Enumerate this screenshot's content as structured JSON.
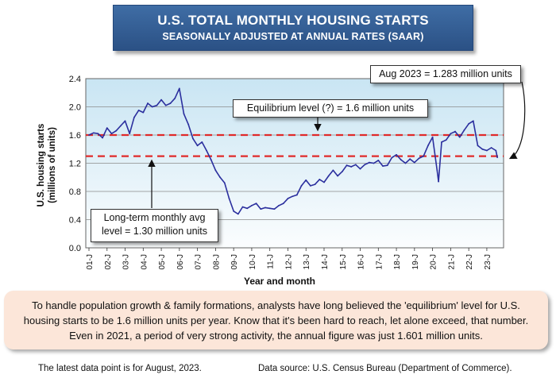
{
  "header": {
    "title": "U.S. TOTAL MONTHLY HOUSING STARTS",
    "subtitle": "SEASONALLY ADJUSTED AT ANNUAL RATES (SAAR)"
  },
  "chart_data": {
    "type": "line",
    "ylabel_line1": "U.S. housing starts",
    "ylabel_line2": "(millions of units)",
    "xlabel": "Year and month",
    "ylim": [
      0.0,
      2.4
    ],
    "y_ticks": [
      "0.0",
      "0.4",
      "0.8",
      "1.2",
      "1.6",
      "2.0",
      "2.4"
    ],
    "x_tick_labels": [
      "01-J",
      "02-J",
      "03-J",
      "04-J",
      "05-J",
      "06-J",
      "07-J",
      "08-J",
      "09-J",
      "10-J",
      "11-J",
      "12-J",
      "13-J",
      "14-J",
      "15-J",
      "16-J",
      "17-J",
      "18-J",
      "19-J",
      "20-J",
      "21-J",
      "22-J",
      "23-J"
    ],
    "x_range": [
      2001.0,
      2023.75
    ],
    "series": [
      {
        "name": "Housing starts (SAAR, millions)",
        "color": "#2b2f9e",
        "x": [
          2001.0,
          2001.25,
          2001.5,
          2001.75,
          2002.0,
          2002.25,
          2002.5,
          2002.75,
          2003.0,
          2003.25,
          2003.5,
          2003.75,
          2004.0,
          2004.25,
          2004.5,
          2004.75,
          2005.0,
          2005.25,
          2005.5,
          2005.75,
          2006.0,
          2006.25,
          2006.5,
          2006.75,
          2007.0,
          2007.25,
          2007.5,
          2007.75,
          2008.0,
          2008.25,
          2008.5,
          2008.75,
          2009.0,
          2009.25,
          2009.5,
          2009.75,
          2010.0,
          2010.25,
          2010.5,
          2010.75,
          2011.0,
          2011.25,
          2011.5,
          2011.75,
          2012.0,
          2012.25,
          2012.5,
          2012.75,
          2013.0,
          2013.25,
          2013.5,
          2013.75,
          2014.0,
          2014.25,
          2014.5,
          2014.75,
          2015.0,
          2015.25,
          2015.5,
          2015.75,
          2016.0,
          2016.25,
          2016.5,
          2016.75,
          2017.0,
          2017.25,
          2017.5,
          2017.75,
          2018.0,
          2018.25,
          2018.5,
          2018.75,
          2019.0,
          2019.25,
          2019.5,
          2019.75,
          2020.0,
          2020.25,
          2020.33,
          2020.5,
          2020.75,
          2021.0,
          2021.25,
          2021.5,
          2021.75,
          2022.0,
          2022.25,
          2022.5,
          2022.75,
          2023.0,
          2023.25,
          2023.5,
          2023.58
        ],
        "values": [
          1.6,
          1.63,
          1.62,
          1.56,
          1.7,
          1.62,
          1.66,
          1.73,
          1.8,
          1.62,
          1.85,
          1.95,
          1.92,
          2.05,
          2.0,
          2.02,
          2.1,
          2.02,
          2.05,
          2.12,
          2.26,
          1.9,
          1.75,
          1.55,
          1.45,
          1.5,
          1.38,
          1.25,
          1.1,
          1.0,
          0.92,
          0.7,
          0.52,
          0.48,
          0.58,
          0.56,
          0.6,
          0.63,
          0.55,
          0.57,
          0.56,
          0.55,
          0.6,
          0.63,
          0.7,
          0.73,
          0.75,
          0.88,
          0.96,
          0.88,
          0.9,
          0.97,
          0.93,
          1.02,
          1.1,
          1.02,
          1.08,
          1.17,
          1.15,
          1.18,
          1.12,
          1.18,
          1.21,
          1.2,
          1.24,
          1.16,
          1.17,
          1.28,
          1.32,
          1.25,
          1.2,
          1.26,
          1.21,
          1.27,
          1.3,
          1.45,
          1.57,
          1.1,
          0.94,
          1.5,
          1.53,
          1.62,
          1.65,
          1.57,
          1.67,
          1.76,
          1.8,
          1.45,
          1.4,
          1.38,
          1.42,
          1.38,
          1.283
        ]
      }
    ],
    "reference_lines": [
      {
        "name": "Equilibrium level",
        "value": 1.6,
        "color": "#e02a2a"
      },
      {
        "name": "Long-term monthly avg",
        "value": 1.3,
        "color": "#e02a2a"
      }
    ],
    "annotations": {
      "latest": "Aug 2023 = 1.283 million units",
      "equilibrium": "Equilibrium level (?) = 1.6 million units",
      "longterm_line1": "Long-term monthly avg",
      "longterm_line2": "level = 1.30 million units"
    }
  },
  "note": {
    "text": "To handle population growth & family formations, analysts have long believed the 'equilibrium' level for U.S. housing starts to be 1.6 million units per year. Know that it's been hard to reach, let alone exceed, that number. Even in 2021, a period of very strong activity, the annual figure was just 1.601 million units."
  },
  "footer": {
    "latest_point": "The latest data point is for August, 2023.",
    "source": "Data source: U.S. Census Bureau (Department of Commerce)."
  }
}
